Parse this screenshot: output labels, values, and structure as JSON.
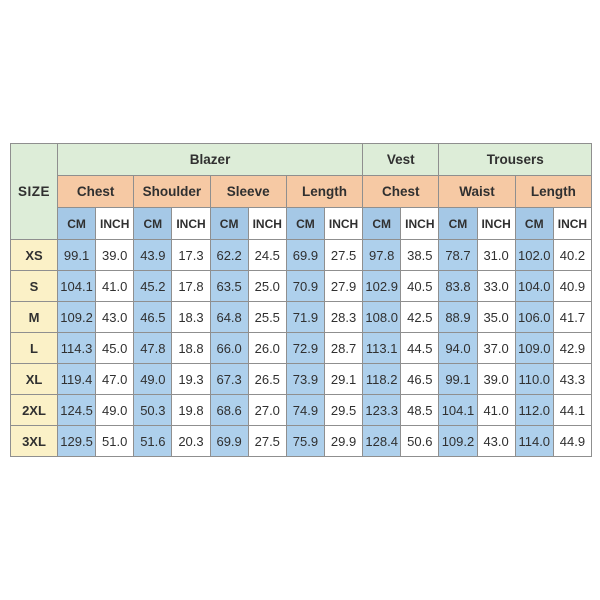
{
  "page": {
    "background": "#ffffff"
  },
  "chart_data": {
    "type": "table",
    "corner_header": "SIZE",
    "column_groups": [
      {
        "label": "Blazer",
        "span": 8
      },
      {
        "label": "Vest",
        "span": 2
      },
      {
        "label": "Trousers",
        "span": 4
      }
    ],
    "measure_headers": [
      "Chest",
      "Shoulder",
      "Sleeve",
      "Length",
      "Chest",
      "Waist",
      "Length"
    ],
    "units": [
      "CM",
      "INCH"
    ],
    "rows": [
      {
        "size": "XS",
        "values": [
          "99.1",
          "39.0",
          "43.9",
          "17.3",
          "62.2",
          "24.5",
          "69.9",
          "27.5",
          "97.8",
          "38.5",
          "78.7",
          "31.0",
          "102.0",
          "40.2"
        ]
      },
      {
        "size": "S",
        "values": [
          "104.1",
          "41.0",
          "45.2",
          "17.8",
          "63.5",
          "25.0",
          "70.9",
          "27.9",
          "102.9",
          "40.5",
          "83.8",
          "33.0",
          "104.0",
          "40.9"
        ]
      },
      {
        "size": "M",
        "values": [
          "109.2",
          "43.0",
          "46.5",
          "18.3",
          "64.8",
          "25.5",
          "71.9",
          "28.3",
          "108.0",
          "42.5",
          "88.9",
          "35.0",
          "106.0",
          "41.7"
        ]
      },
      {
        "size": "L",
        "values": [
          "114.3",
          "45.0",
          "47.8",
          "18.8",
          "66.0",
          "26.0",
          "72.9",
          "28.7",
          "113.1",
          "44.5",
          "94.0",
          "37.0",
          "109.0",
          "42.9"
        ]
      },
      {
        "size": "XL",
        "values": [
          "119.4",
          "47.0",
          "49.0",
          "19.3",
          "67.3",
          "26.5",
          "73.9",
          "29.1",
          "118.2",
          "46.5",
          "99.1",
          "39.0",
          "110.0",
          "43.3"
        ]
      },
      {
        "size": "2XL",
        "values": [
          "124.5",
          "49.0",
          "50.3",
          "19.8",
          "68.6",
          "27.0",
          "74.9",
          "29.5",
          "123.3",
          "48.5",
          "104.1",
          "41.0",
          "112.0",
          "44.1"
        ]
      },
      {
        "size": "3XL",
        "values": [
          "129.5",
          "51.0",
          "51.6",
          "20.3",
          "69.9",
          "27.5",
          "75.9",
          "29.9",
          "128.4",
          "50.6",
          "109.2",
          "43.0",
          "114.0",
          "44.9"
        ]
      }
    ],
    "colors": {
      "group_header_bg": "#ddedd8",
      "measure_header_bg": "#f6c9a4",
      "unit_cm_bg": "#a5c8e6",
      "data_cm_bg": "#aed0ec",
      "size_col_bg": "#fbf1c7",
      "inch_bg": "#ffffff",
      "border": "#8f8f8f",
      "border_outer": "#6e6e6e",
      "text": "#303030"
    }
  }
}
